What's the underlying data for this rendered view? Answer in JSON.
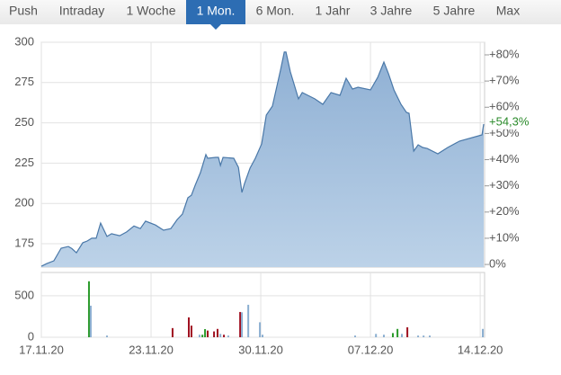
{
  "tabs": {
    "items": [
      "Push",
      "Intraday",
      "1 Woche",
      "1 Mon.",
      "6 Mon.",
      "1 Jahr",
      "3 Jahre",
      "5 Jahre",
      "Max"
    ],
    "active": 3
  },
  "chart_data": [
    {
      "type": "area",
      "x": [
        0,
        0.25,
        0.57,
        0.9,
        1.23,
        1.39,
        1.6,
        1.89,
        2.09,
        2.3,
        2.5,
        2.7,
        2.99,
        3.2,
        3.57,
        3.89,
        4.22,
        4.51,
        4.75,
        5.2,
        5.57,
        5.9,
        6.19,
        6.43,
        6.68,
        6.84,
        7.01,
        7.25,
        7.5,
        7.58,
        7.95,
        8.07,
        8.16,
        8.28,
        8.77,
        8.98,
        9.14,
        9.26,
        9.51,
        9.75,
        10.04,
        10.25,
        10.53,
        10.9,
        11.07,
        11.15,
        11.35,
        11.72,
        11.89,
        12.46,
        12.83,
        13.2,
        13.61,
        13.89,
        14.18,
        14.43,
        15,
        15.33,
        15.61,
        15.82,
        16.07,
        16.39,
        16.64,
        16.76,
        16.97,
        17.17,
        17.38,
        17.58,
        18.07,
        18.52,
        19.06,
        20.08,
        20.16
      ],
      "series": [
        {
          "color": "#4a78a8",
          "values": [
            161,
            162.7,
            164.4,
            172.2,
            173.3,
            172,
            169.4,
            175.6,
            176.7,
            178.4,
            178.4,
            187.8,
            179.5,
            181.2,
            180,
            182.3,
            186,
            184.4,
            189,
            186.6,
            183.4,
            184.4,
            190,
            193.4,
            203.5,
            205.1,
            211.3,
            219.1,
            230.3,
            228,
            228.6,
            228.6,
            223.6,
            228.6,
            228,
            222.4,
            206.8,
            212.4,
            221.9,
            228,
            236.9,
            254.8,
            260.4,
            282.7,
            293.9,
            293.9,
            281.6,
            264.9,
            268.8,
            264.9,
            261.5,
            268.8,
            267.1,
            277.7,
            271,
            272.1,
            270.4,
            278.2,
            287.7,
            280.5,
            270.4,
            261.5,
            256.5,
            255.9,
            232.5,
            236.4,
            234.7,
            234.1,
            230.8,
            234.7,
            238.7,
            242.5,
            249.2
          ]
        }
      ],
      "xlim": [
        0,
        20.2
      ],
      "ylim": [
        160.5,
        300
      ],
      "yticks": [
        175,
        200,
        225,
        250,
        275,
        300
      ],
      "y2lim": [
        -1,
        84.8
      ],
      "y2ticks": [
        {
          "value": 0,
          "label": "0%"
        },
        {
          "value": 10,
          "label": "+10%"
        },
        {
          "value": 20,
          "label": "+20%"
        },
        {
          "value": 30,
          "label": "+30%"
        },
        {
          "value": 40,
          "label": "+40%"
        },
        {
          "value": 50,
          "label": "+50%"
        },
        {
          "value": 60,
          "label": "+60%"
        },
        {
          "value": 70,
          "label": "+70%"
        },
        {
          "value": 80,
          "label": "+80%"
        }
      ],
      "annotations": [
        {
          "value": 54.3,
          "label": "+54,3%",
          "axis": "y2",
          "color": "#2a8a2a"
        }
      ],
      "grid": true
    },
    {
      "type": "bar",
      "series": [
        {
          "color": "#2a9a2a",
          "x": [
            2.17,
            7.34,
            7.46,
            16.02,
            16.23
          ],
          "values": [
            674,
            30,
            98,
            50,
            100
          ]
        },
        {
          "color": "#a01020",
          "x": [
            5.98,
            6.72,
            6.84,
            7.58,
            7.87,
            8.03,
            8.32,
            9.06,
            16.68
          ],
          "values": [
            110,
            239,
            140,
            80,
            70,
            100,
            30,
            304,
            120
          ]
        },
        {
          "color": "#8aaed0",
          "x": [
            2.25,
            2.99,
            7.21,
            8.16,
            8.52,
            9.14,
            9.43,
            9.96,
            10.08,
            14.3,
            15.25,
            15.61,
            16.43,
            17.17,
            17.42,
            17.7,
            20.12
          ],
          "values": [
            380,
            20,
            30,
            40,
            20,
            300,
            391,
            180,
            30,
            20,
            40,
            30,
            40,
            20,
            20,
            20,
            100
          ]
        }
      ],
      "xlim": [
        0,
        20.2
      ],
      "xticks": [
        {
          "value": 0,
          "label": "17.11.20"
        },
        {
          "value": 5,
          "label": "23.11.20"
        },
        {
          "value": 10,
          "label": "30.11.20"
        },
        {
          "value": 15,
          "label": "07.12.20"
        },
        {
          "value": 20,
          "label": "14.12.20"
        }
      ],
      "ylim": [
        0,
        780
      ],
      "yticks": [
        0,
        500
      ],
      "grid": true
    }
  ]
}
